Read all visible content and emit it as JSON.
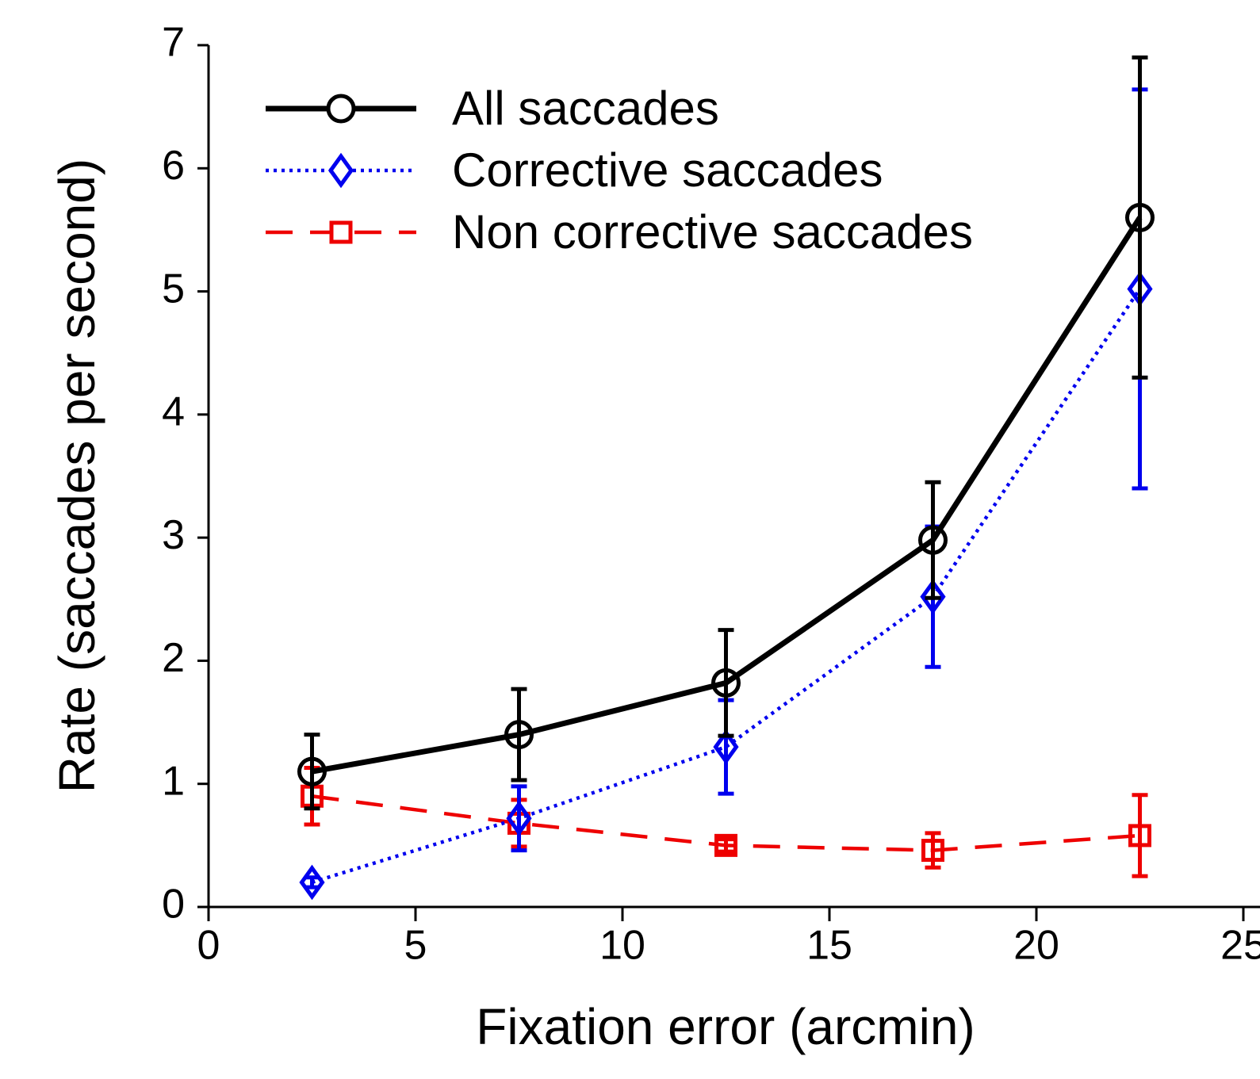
{
  "chart_data": {
    "type": "line",
    "x_label": "Fixation error (arcmin)",
    "y_label": "Rate (saccades per second)",
    "x": [
      2.5,
      7.5,
      12.5,
      17.5,
      22.5
    ],
    "series": [
      {
        "name": "All saccades",
        "color": "#000000",
        "line_style": "solid",
        "marker": "circle",
        "values": [
          1.1,
          1.4,
          1.82,
          2.98,
          5.6
        ],
        "errors": [
          0.3,
          0.37,
          0.43,
          0.47,
          1.3
        ]
      },
      {
        "name": "Corrective saccades",
        "color": "#0000ee",
        "line_style": "dotted",
        "marker": "diamond",
        "values": [
          0.2,
          0.72,
          1.3,
          2.52,
          5.02
        ],
        "errors": [
          0.04,
          0.26,
          0.38,
          0.57,
          1.62
        ]
      },
      {
        "name": "Non corrective saccades",
        "color": "#ee0000",
        "line_style": "dashed",
        "marker": "square",
        "values": [
          0.9,
          0.68,
          0.5,
          0.46,
          0.58
        ],
        "errors": [
          0.23,
          0.19,
          0.05,
          0.14,
          0.33
        ]
      }
    ],
    "xlim": [
      0,
      25
    ],
    "xticks": [
      0,
      5,
      10,
      15,
      20,
      25
    ],
    "ylim": [
      0,
      7
    ],
    "yticks": [
      0,
      1,
      2,
      3,
      4,
      5,
      6,
      7
    ],
    "legend": "upper left"
  }
}
